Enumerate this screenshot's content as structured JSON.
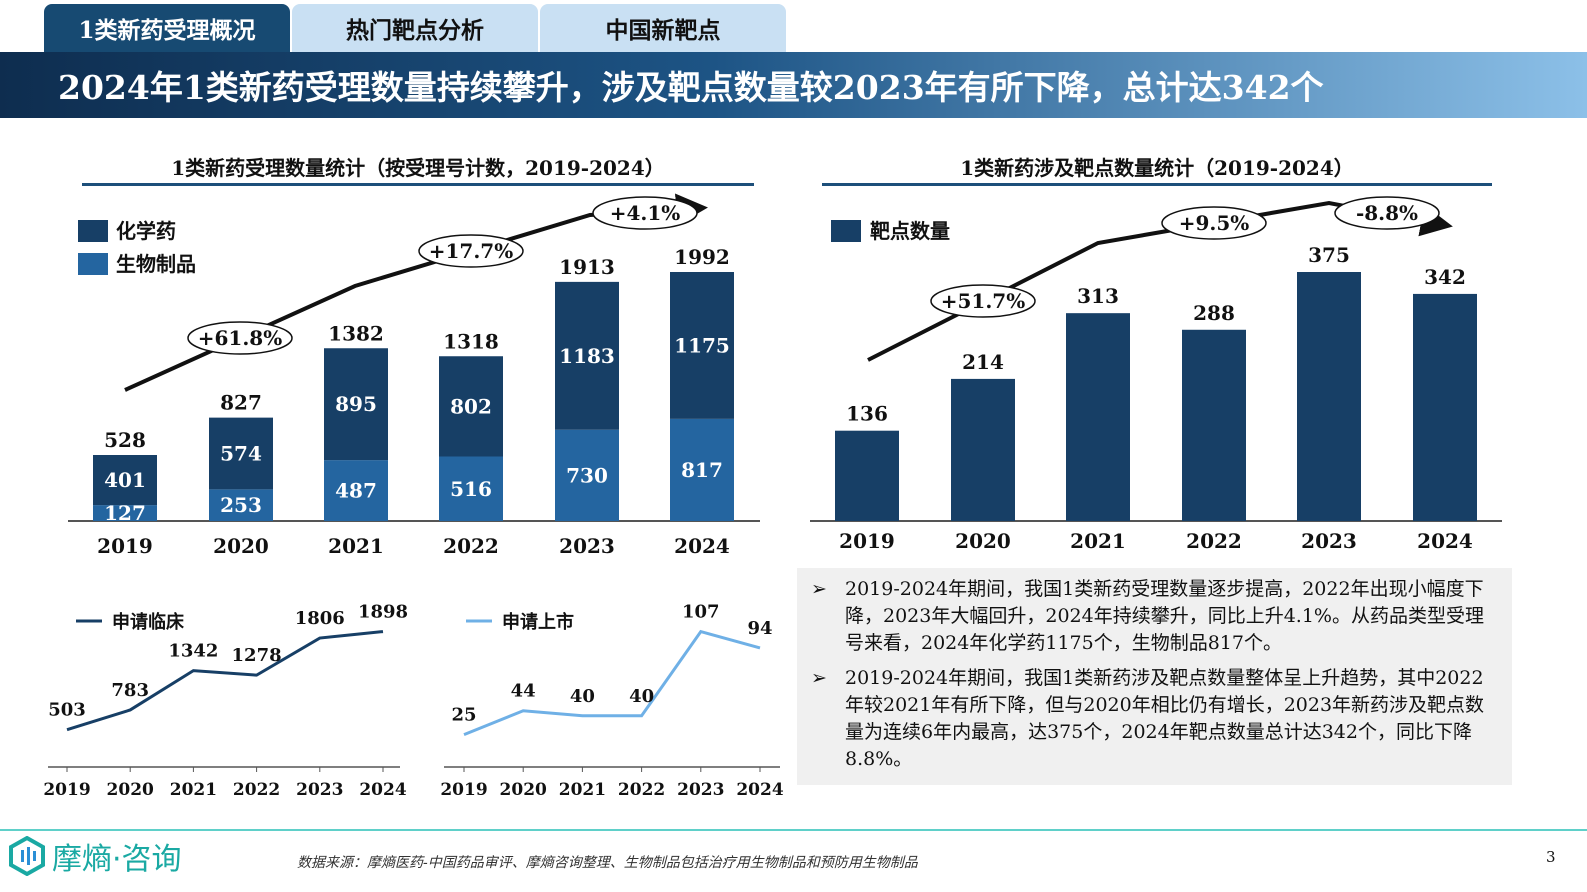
{
  "tabs": [
    {
      "label": "1类新药受理概况",
      "active": true
    },
    {
      "label": "热门靶点分析",
      "active": false
    },
    {
      "label": "中国新靶点",
      "active": false
    }
  ],
  "banner_title": "2024年1类新药受理数量持续攀升，涉及靶点数量较2023年有所下降，总计达342个",
  "colors": {
    "dark_blue": "#173f66",
    "mid_blue": "#2465a0",
    "light_line": "#6fb0e6",
    "accent_teal": "#1aa9a3"
  },
  "chart_data": [
    {
      "type": "bar",
      "stacked": true,
      "title": "1类新药受理数量统计（按受理号计数，2019-2024）",
      "categories": [
        "2019",
        "2020",
        "2021",
        "2022",
        "2023",
        "2024"
      ],
      "series": [
        {
          "name": "化学药",
          "values": [
            401,
            574,
            895,
            802,
            1183,
            1175
          ],
          "color": "#173f66"
        },
        {
          "name": "生物制品",
          "values": [
            127,
            253,
            487,
            516,
            730,
            817
          ],
          "color": "#2465a0"
        }
      ],
      "totals": [
        528,
        827,
        1382,
        1318,
        1913,
        1992
      ],
      "legend": "top-left",
      "annotations": [
        "+61.8%",
        "+17.7%",
        "+4.1%"
      ]
    },
    {
      "type": "bar",
      "title": "1类新药涉及靶点数量统计（2019-2024）",
      "categories": [
        "2019",
        "2020",
        "2021",
        "2022",
        "2023",
        "2024"
      ],
      "series": [
        {
          "name": "靶点数量",
          "values": [
            136,
            214,
            313,
            288,
            375,
            342
          ],
          "color": "#173f66"
        }
      ],
      "legend": "top-left",
      "annotations": [
        "+51.7%",
        "+9.5%",
        "-8.8%"
      ]
    },
    {
      "type": "line",
      "categories": [
        "2019",
        "2020",
        "2021",
        "2022",
        "2023",
        "2024"
      ],
      "series": [
        {
          "name": "申请临床",
          "values": [
            503,
            783,
            1342,
            1278,
            1806,
            1898
          ],
          "color": "#173f66"
        }
      ],
      "legend": "top-left"
    },
    {
      "type": "line",
      "categories": [
        "2019",
        "2020",
        "2021",
        "2022",
        "2023",
        "2024"
      ],
      "series": [
        {
          "name": "申请上市",
          "values": [
            25,
            44,
            40,
            40,
            107,
            94
          ],
          "color": "#6fb0e6"
        }
      ],
      "legend": "top-left"
    }
  ],
  "summary": [
    "2019-2024年期间，我国1类新药受理数量逐步提高，2022年出现小幅度下降，2023年大幅回升，2024年持续攀升，同比上升4.1%。从药品类型受理号来看，2024年化学药1175个，生物制品817个。",
    "2019-2024年期间，我国1类新药涉及靶点数量整体呈上升趋势，其中2022年较2021年有所下降，但与2020年相比仍有增长，2023年新药涉及靶点数量为连续6年内最高，达375个，2024年靶点数量总计达342个，同比下降8.8%。"
  ],
  "footer": {
    "logo": "摩熵·咨询",
    "source": "数据来源：摩熵医药-中国药品审评、摩熵咨询整理、生物制品包括治疗用生物制品和预防用生物制品",
    "page": "3"
  }
}
